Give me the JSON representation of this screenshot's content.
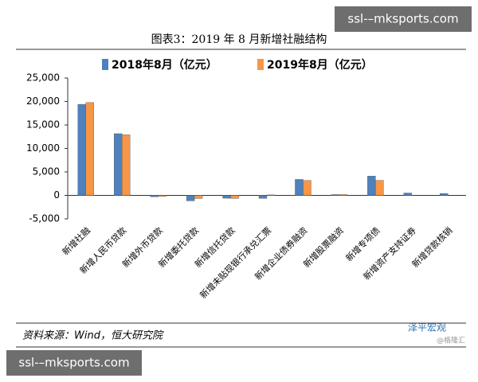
{
  "chart_data": {
    "type": "bar",
    "title": "图表3：2019 年 8 月新增社融结构",
    "categories": [
      "新增社融",
      "新增人民币贷款",
      "新增外币贷款",
      "新增委托贷款",
      "新增信托贷款",
      "新增未贴现银行承兑汇票",
      "新增企业债券融资",
      "新增股票融资",
      "新增专项债",
      "新增资产支持证券",
      "新增贷款核销"
    ],
    "series": [
      {
        "name": "2018年8月（亿元）",
        "color": "#4f81bd",
        "values": [
          19391,
          13140,
          -291,
          -1165,
          -608,
          -647,
          3402,
          171,
          4106,
          500,
          400
        ]
      },
      {
        "name": "2019年8月（亿元）",
        "color": "#f79646",
        "values": [
          19771,
          12900,
          -232,
          -667,
          -655,
          100,
          3183,
          178,
          3200,
          0,
          0
        ]
      }
    ],
    "ylim": [
      -5000,
      25000
    ],
    "yticks": [
      {
        "value": -5000,
        "label": "-5,000"
      },
      0,
      {
        "value": 5000,
        "label": "5,000"
      },
      {
        "value": 10000,
        "label": "10,000"
      },
      {
        "value": 15000,
        "label": "15,000"
      },
      {
        "value": 20000,
        "label": "20,000"
      },
      {
        "value": 25000,
        "label": "25,000"
      }
    ],
    "grid": false
  },
  "source": "资料来源：Wind，恒大研究院",
  "logo": "泽平宏观",
  "logo_sub": "@格隆汇",
  "watermark": "ssl-–mksports.com"
}
